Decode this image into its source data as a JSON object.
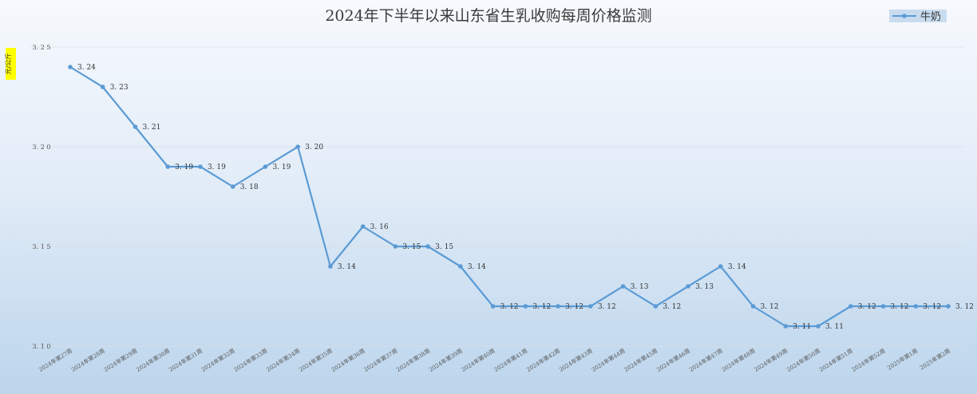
{
  "chart_data": {
    "type": "line",
    "title": "2024年下半年以来山东省生乳收购每周价格监测",
    "ylabel": "元/公斤",
    "xlabel": "",
    "ylim": [
      3.1,
      3.25
    ],
    "yticks": [
      "3.10",
      "3.15",
      "3.20",
      "3.25"
    ],
    "grid": true,
    "legend_position": "top-right",
    "categories": [
      "2024年第27周",
      "2024年第28周",
      "2024年第29周",
      "2024年第30周",
      "2024年第31周",
      "2024年第32周",
      "2024年第33周",
      "2024年第34周",
      "2024年第35周",
      "2024年第36周",
      "2024年第37周",
      "2024年第38周",
      "2024年第39周",
      "2024年第40周",
      "2024年第41周",
      "2024年第42周",
      "2024年第43周",
      "2024年第44周",
      "2024年第45周",
      "2024年第46周",
      "2024年第47周",
      "2024年第48周",
      "2024年第49周",
      "2024年第50周",
      "2024年第51周",
      "2024年第52周",
      "2025年第1周",
      "2025年第2周"
    ],
    "series": [
      {
        "name": "牛奶",
        "color": "#5b9bd5",
        "values": [
          3.24,
          3.23,
          3.21,
          3.19,
          3.19,
          3.18,
          3.19,
          3.2,
          3.14,
          3.16,
          3.15,
          3.15,
          3.14,
          3.12,
          3.12,
          3.12,
          3.12,
          3.13,
          3.12,
          3.13,
          3.14,
          3.12,
          3.11,
          3.11,
          3.12,
          3.12,
          3.12,
          3.12
        ]
      }
    ]
  }
}
